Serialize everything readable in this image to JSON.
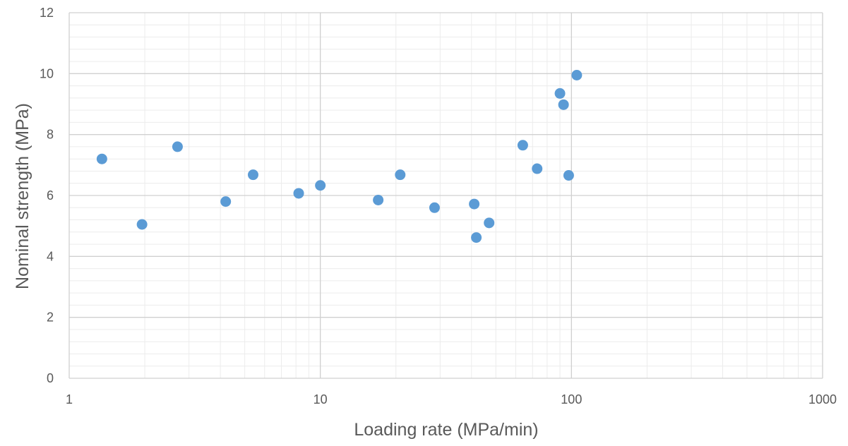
{
  "chart_data": {
    "type": "scatter",
    "title": "",
    "xlabel": "Loading rate (MPa/min)",
    "ylabel": "Nominal strength (MPa)",
    "x_scale": "log",
    "xlim": [
      1,
      1000
    ],
    "ylim": [
      0,
      12
    ],
    "x_ticks": [
      "1",
      "10",
      "100",
      "1000"
    ],
    "y_ticks": [
      "0",
      "2",
      "4",
      "6",
      "8",
      "10",
      "12"
    ],
    "grid": "major and minor",
    "legend": "none",
    "marker_color": "#5b9bd5",
    "points": [
      {
        "x": 1.35,
        "y": 7.2
      },
      {
        "x": 1.95,
        "y": 5.05
      },
      {
        "x": 2.7,
        "y": 7.6
      },
      {
        "x": 4.2,
        "y": 5.8
      },
      {
        "x": 5.4,
        "y": 6.68
      },
      {
        "x": 8.2,
        "y": 6.07
      },
      {
        "x": 10.0,
        "y": 6.33
      },
      {
        "x": 17.0,
        "y": 5.85
      },
      {
        "x": 20.8,
        "y": 6.68
      },
      {
        "x": 28.5,
        "y": 5.6
      },
      {
        "x": 41.0,
        "y": 5.72
      },
      {
        "x": 41.8,
        "y": 4.62
      },
      {
        "x": 47.0,
        "y": 5.1
      },
      {
        "x": 64.0,
        "y": 7.65
      },
      {
        "x": 73.0,
        "y": 6.88
      },
      {
        "x": 90.0,
        "y": 9.35
      },
      {
        "x": 93.0,
        "y": 8.98
      },
      {
        "x": 97.5,
        "y": 6.66
      },
      {
        "x": 105.0,
        "y": 9.95
      }
    ]
  }
}
